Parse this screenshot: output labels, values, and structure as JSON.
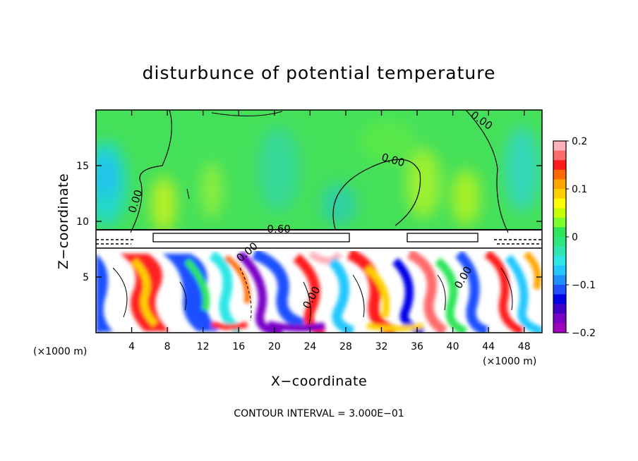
{
  "chart_data": {
    "type": "heatmap",
    "title": "disturbunce of potential temperature",
    "xlabel": "X−coordinate",
    "ylabel": "Z−coordinate",
    "x_unit_left": "(×1000 m)",
    "x_unit_right": "(×1000 m)",
    "xlim": [
      0,
      50
    ],
    "ylim": [
      0,
      20
    ],
    "x_ticks": [
      4,
      8,
      12,
      16,
      20,
      24,
      28,
      32,
      36,
      40,
      44,
      48
    ],
    "y_ticks": [
      5,
      10,
      15
    ],
    "x_tick_labels": [
      "4",
      "8",
      "12",
      "16",
      "20",
      "24",
      "28",
      "32",
      "36",
      "40",
      "44",
      "48"
    ],
    "y_tick_labels": [
      "5",
      "10",
      "15"
    ],
    "colorbar": {
      "min": -0.2,
      "max": 0.2,
      "tick_values": [
        0.2,
        0.1,
        0,
        -0.1,
        -0.2
      ],
      "tick_labels": [
        "0.2",
        "0.1",
        "0",
        "−0.1",
        "−0.2"
      ],
      "colors": [
        "#ffb0b8",
        "#ff6a6a",
        "#ff1a1a",
        "#ff6a00",
        "#ffa500",
        "#ffd000",
        "#ffff00",
        "#c8ff00",
        "#7cff2a",
        "#2ee65a",
        "#2ee67e",
        "#2ee6b4",
        "#2ee6e6",
        "#22c8ff",
        "#1e90ff",
        "#1e50ff",
        "#0000e6",
        "#4000c8",
        "#7a00c8",
        "#a000c0"
      ]
    },
    "contour_labels": [
      {
        "text": "0.00",
        "x": 4.8,
        "y": 11.7,
        "angle": -72
      },
      {
        "text": "0.00",
        "x": 33.2,
        "y": 15.2,
        "angle": 16
      },
      {
        "text": "0.00",
        "x": 43.0,
        "y": 18.8,
        "angle": 35
      },
      {
        "text": "0.60",
        "x": 20.5,
        "y": 9.0,
        "angle": 0
      },
      {
        "text": "0.00",
        "x": 17.2,
        "y": 7.0,
        "angle": -40
      },
      {
        "text": "0.00",
        "x": 24.5,
        "y": 3.0,
        "angle": -60
      },
      {
        "text": "0.00",
        "x": 41.5,
        "y": 4.8,
        "angle": -60
      }
    ],
    "footer": "CONTOUR INTERVAL = 3.000E−01",
    "grid": false
  }
}
